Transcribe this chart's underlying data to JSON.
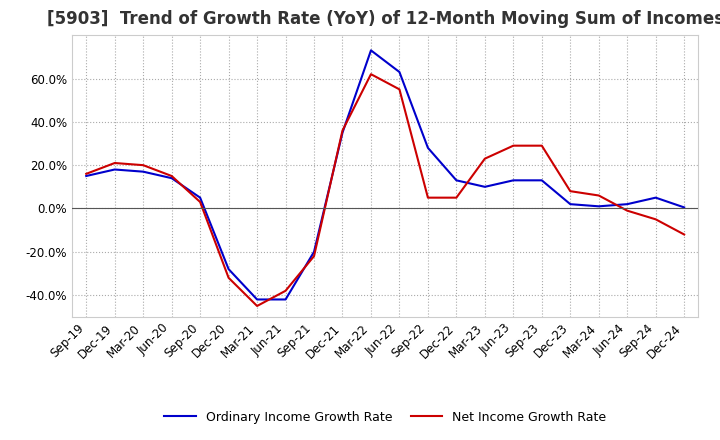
{
  "title": "[5903]  Trend of Growth Rate (YoY) of 12-Month Moving Sum of Incomes",
  "ylim": [
    -50,
    80
  ],
  "yticks": [
    -40,
    -20,
    0,
    20,
    40,
    60
  ],
  "legend_labels": [
    "Ordinary Income Growth Rate",
    "Net Income Growth Rate"
  ],
  "legend_colors": [
    "#0000cc",
    "#cc0000"
  ],
  "x_labels": [
    "Sep-19",
    "Dec-19",
    "Mar-20",
    "Jun-20",
    "Sep-20",
    "Dec-20",
    "Mar-21",
    "Jun-21",
    "Sep-21",
    "Dec-21",
    "Mar-22",
    "Jun-22",
    "Sep-22",
    "Dec-22",
    "Mar-23",
    "Jun-23",
    "Sep-23",
    "Dec-23",
    "Mar-24",
    "Jun-24",
    "Sep-24",
    "Dec-24"
  ],
  "ordinary_income_gr": [
    15.0,
    18.0,
    17.0,
    14.0,
    5.0,
    -28.0,
    -42.0,
    -42.0,
    -20.0,
    35.0,
    73.0,
    63.0,
    28.0,
    13.0,
    10.0,
    13.0,
    13.0,
    2.0,
    1.0,
    2.0,
    5.0,
    0.5
  ],
  "net_income_gr": [
    16.0,
    21.0,
    20.0,
    15.0,
    3.0,
    -32.0,
    -45.0,
    -38.0,
    -22.0,
    36.0,
    62.0,
    55.0,
    5.0,
    5.0,
    23.0,
    29.0,
    29.0,
    8.0,
    6.0,
    -1.0,
    -5.0,
    -12.0
  ],
  "background_color": "#ffffff",
  "grid_color": "#aaaaaa",
  "title_fontsize": 12,
  "tick_fontsize": 8.5
}
